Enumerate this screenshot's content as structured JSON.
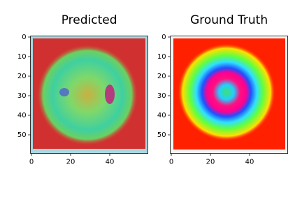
{
  "chart_data": [
    {
      "type": "image",
      "title": "Predicted",
      "xlim": [
        -0.5,
        59.5
      ],
      "ylim": [
        59.5,
        -0.5
      ],
      "xticks": [
        0,
        20,
        40
      ],
      "yticks": [
        0,
        10,
        20,
        30,
        40,
        50
      ]
    },
    {
      "type": "image",
      "title": "Ground Truth",
      "xlim": [
        -0.5,
        59.5
      ],
      "ylim": [
        59.5,
        -0.5
      ],
      "xticks": [
        0,
        20,
        40
      ],
      "yticks": [
        0,
        10,
        20,
        30,
        40,
        50
      ]
    }
  ]
}
